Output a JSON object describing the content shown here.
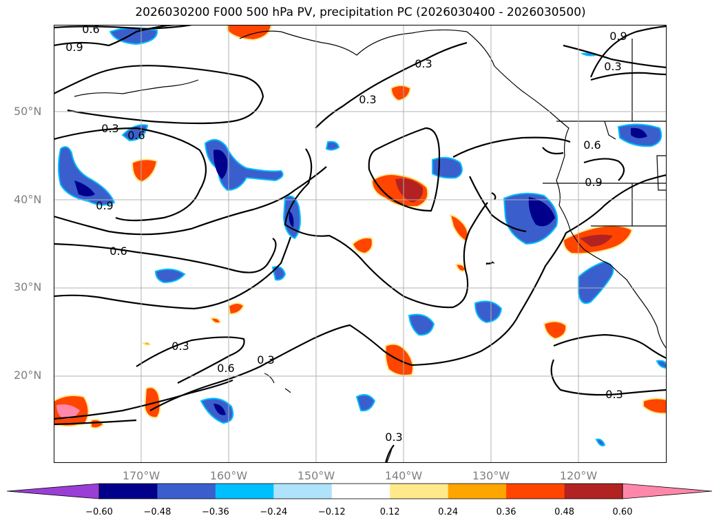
{
  "title": "2026030200 F000 500 hPa PV, precipitation PC (2026030400 - 2026030500)",
  "latitude_labels": [
    "50°N",
    "40°N",
    "30°N",
    "20°N"
  ],
  "longitude_labels": [
    "170°W",
    "160°W",
    "150°W",
    "140°W",
    "130°W",
    "120°W"
  ],
  "contour_labels": [
    "0.6",
    "0.9",
    "0.9",
    "0.3",
    "0.3",
    "0.3",
    "0.3",
    "0.6",
    "0.9",
    "0.9",
    "0.6",
    "0.3",
    "0.6",
    "0.3",
    "0.3",
    "0.3",
    "0.6"
  ],
  "colorbar": {
    "ticks": [
      "−0.60",
      "−0.48",
      "−0.36",
      "−0.24",
      "−0.12",
      "0.12",
      "0.24",
      "0.36",
      "0.48",
      "0.60"
    ],
    "colors": [
      "#9a3fd6",
      "#00008b",
      "#3a5fcd",
      "#00bfff",
      "#aee3fb",
      "#ffffff",
      "#ffe98a",
      "#ffa500",
      "#ff4500",
      "#b22222",
      "#ff88aa"
    ]
  },
  "colors": {
    "coast": "#000000",
    "contour": "#000000",
    "grid": "#b0b0b0"
  }
}
